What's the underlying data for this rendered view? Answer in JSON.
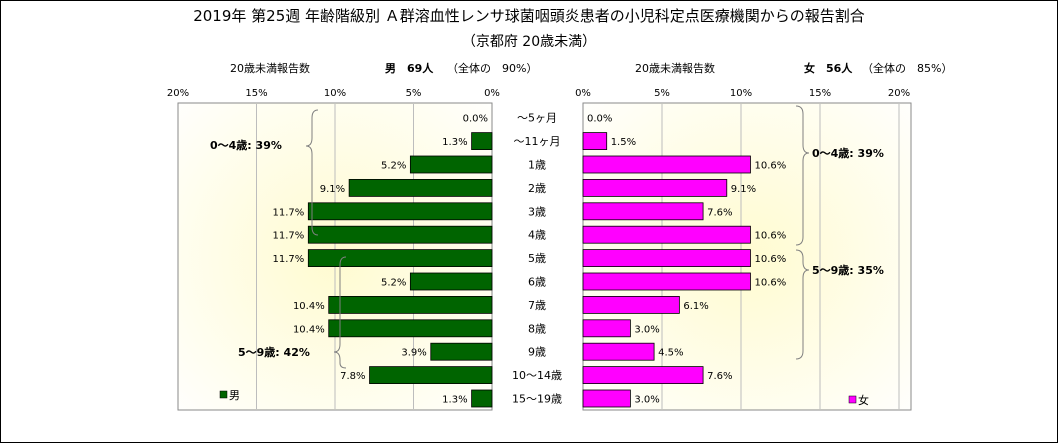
{
  "title": "2019年 第25週 年齢階級別 Ａ群溶血性レンサ球菌咽頭炎患者の小児科定点医療機関からの報告割合",
  "subtitle": "（京都府 20歳未満）",
  "left_header": {
    "caption": "20歳未満報告数",
    "count_label": "男　69人",
    "share_label": "（全体の　90%）"
  },
  "right_header": {
    "caption": "20歳未満報告数",
    "count_label": "女　56人",
    "share_label": "（全体の　85%）"
  },
  "groups": {
    "left_0_4": "0～4歳: 39%",
    "left_5_9": "5～9歳: 42%",
    "right_0_4": "0～4歳: 39%",
    "right_5_9": "5～9歳: 35%"
  },
  "colors": {
    "male": "#006400",
    "female": "#ff00ff",
    "plot_bg_center": "#fffbd0",
    "plot_bg_edge": "#ffffff",
    "frame": "#8a8a8a"
  },
  "chart_data": {
    "type": "bar",
    "orientation": "horizontal-butterfly",
    "categories": [
      "～5ヶ月",
      "～11ヶ月",
      "1歳",
      "2歳",
      "3歳",
      "4歳",
      "5歳",
      "6歳",
      "7歳",
      "8歳",
      "9歳",
      "10～14歳",
      "15～19歳"
    ],
    "xticks": [
      "20%",
      "15%",
      "10%",
      "5%",
      "0%"
    ],
    "xticks_right": [
      "0%",
      "5%",
      "10%",
      "15%",
      "20%"
    ],
    "xlim": [
      0,
      20
    ],
    "grid": false,
    "series": [
      {
        "name": "男",
        "side": "left",
        "values": [
          0.0,
          1.3,
          5.2,
          9.1,
          11.7,
          11.7,
          11.7,
          5.2,
          10.4,
          10.4,
          3.9,
          7.8,
          1.3
        ],
        "labels": [
          "0.0%",
          "1.3%",
          "5.2%",
          "9.1%",
          "11.7%",
          "11.7%",
          "11.7%",
          "5.2%",
          "10.4%",
          "10.4%",
          "3.9%",
          "7.8%",
          "1.3%"
        ]
      },
      {
        "name": "女",
        "side": "right",
        "values": [
          0.0,
          1.5,
          10.6,
          9.1,
          7.6,
          10.6,
          10.6,
          10.6,
          6.1,
          3.0,
          4.5,
          7.6,
          3.0
        ],
        "labels": [
          "0.0%",
          "1.5%",
          "10.6%",
          "9.1%",
          "7.6%",
          "10.6%",
          "10.6%",
          "10.6%",
          "6.1%",
          "3.0%",
          "4.5%",
          "7.6%",
          "3.0%"
        ]
      }
    ],
    "legend": [
      {
        "name": "男",
        "placement": "bottom-left"
      },
      {
        "name": "女",
        "placement": "bottom-right"
      }
    ]
  }
}
